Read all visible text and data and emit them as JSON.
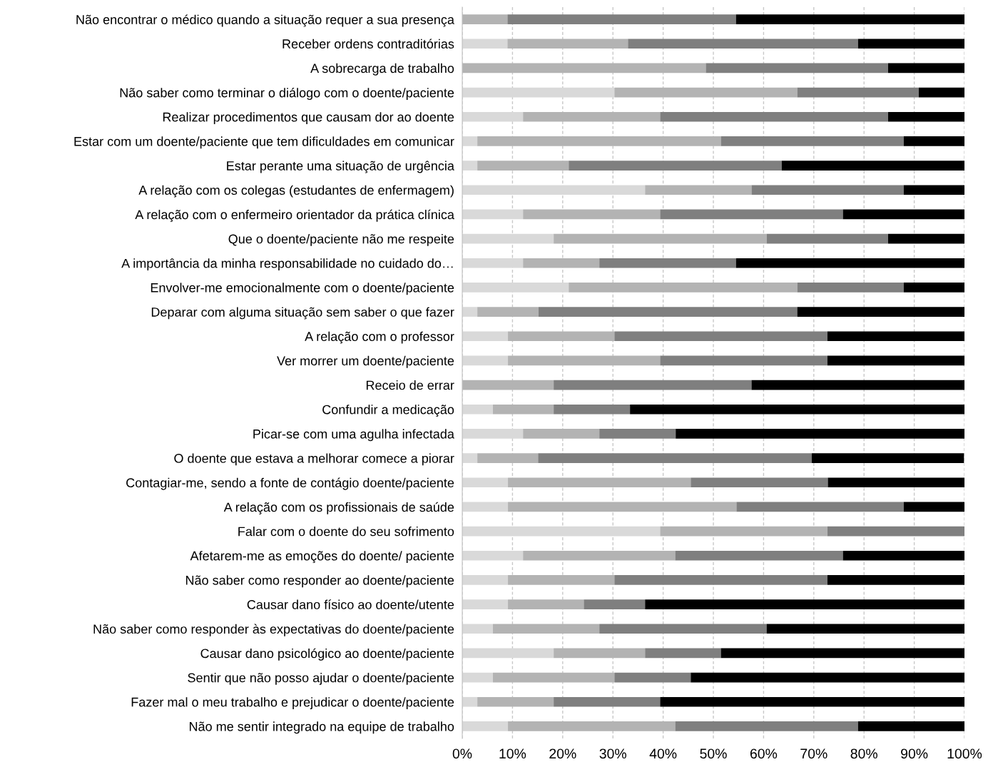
{
  "chart_data": {
    "type": "bar",
    "orientation": "horizontal",
    "stacked": true,
    "grid": "x",
    "categories": [
      "Não encontrar o médico quando a situação requer a sua presença",
      "Receber ordens contraditórias",
      "A sobrecarga de trabalho",
      "Não saber como terminar o diálogo com o doente/paciente",
      "Realizar procedimentos que causam dor ao doente",
      "Estar com um doente/paciente que tem dificuldades em comunicar",
      "Estar perante uma situação de urgência",
      "A relação com os colegas (estudantes de enfermagem)",
      "A relação com o enfermeiro orientador da prática clínica",
      "Que o doente/paciente não me respeite",
      "A importância da minha responsabilidade no cuidado do…",
      "Envolver-me emocionalmente com o doente/paciente",
      "Deparar com alguma situação sem saber o que fazer",
      "A relação com o professor",
      "Ver morrer um doente/paciente",
      "Receio de errar",
      "Confundir a medicação",
      "Picar-se com uma agulha infectada",
      "O doente que estava a melhorar comece a piorar",
      "Contagiar-me, sendo a fonte de contágio doente/paciente",
      "A relação com os profissionais de saúde",
      "Falar com o doente do seu sofrimento",
      "Afetarem-me as emoções do doente/ paciente",
      "Não saber como responder ao doente/paciente",
      "Causar dano físico ao doente/utente",
      "Não saber como responder às expectativas do doente/paciente",
      "Causar dano psicológico ao doente/paciente",
      "Sentir que não posso ajudar o doente/paciente",
      "Fazer mal o meu trabalho e prejudicar o doente/paciente",
      "Não me sentir integrado na equipe de trabalho"
    ],
    "series": [
      {
        "color": "#d9d9d9",
        "values": [
          0,
          9,
          0,
          30.3,
          12.1,
          3,
          3,
          36.4,
          12.1,
          18.2,
          12.1,
          21.2,
          3,
          9.1,
          9.1,
          0,
          6.1,
          12.1,
          3,
          9.1,
          9.1,
          39.4,
          12.1,
          9.1,
          9.1,
          6.1,
          18.2,
          6.1,
          3,
          9.1
        ]
      },
      {
        "color": "#b3b3b3",
        "values": [
          9,
          24,
          48.5,
          36.4,
          27.3,
          48.5,
          18.2,
          21.2,
          27.3,
          42.4,
          15.2,
          45.5,
          12.2,
          21.2,
          30.3,
          18.2,
          12.1,
          15.2,
          12.1,
          36.4,
          45.5,
          33.3,
          30.3,
          21.2,
          15.1,
          21.2,
          18.2,
          24.2,
          15.2,
          33.3
        ]
      },
      {
        "color": "#7f7f7f",
        "values": [
          45.5,
          45.8,
          36.3,
          24.2,
          45.4,
          36.4,
          42.4,
          30.3,
          36.4,
          24.2,
          27.2,
          21.2,
          51.5,
          42.4,
          33.3,
          39.4,
          15.2,
          15.2,
          54.5,
          27.3,
          33.3,
          27.3,
          33.4,
          42.4,
          12.2,
          33.3,
          15.1,
          15.2,
          21.2,
          36.4
        ]
      },
      {
        "color": "#000000",
        "values": [
          45.5,
          21.2,
          15.2,
          9.1,
          15.2,
          12.1,
          36.4,
          12.1,
          24.2,
          15.2,
          45.5,
          12.1,
          33.3,
          27.3,
          27.3,
          42.4,
          66.7,
          57.6,
          30.3,
          27.3,
          12.1,
          0,
          24.2,
          27.3,
          63.6,
          39.4,
          48.5,
          54.5,
          60.6,
          21.2
        ]
      }
    ],
    "xlim": [
      0,
      100
    ],
    "xticks": [
      {
        "value": 0,
        "label": "0%"
      },
      {
        "value": 10,
        "label": "10%"
      },
      {
        "value": 20,
        "label": "20%"
      },
      {
        "value": 30,
        "label": "30%"
      },
      {
        "value": 40,
        "label": "40%"
      },
      {
        "value": 50,
        "label": "50%"
      },
      {
        "value": 60,
        "label": "60%"
      },
      {
        "value": 70,
        "label": "70%"
      },
      {
        "value": 80,
        "label": "80%"
      },
      {
        "value": 90,
        "label": "90%"
      },
      {
        "value": 100,
        "label": "100%"
      }
    ]
  }
}
